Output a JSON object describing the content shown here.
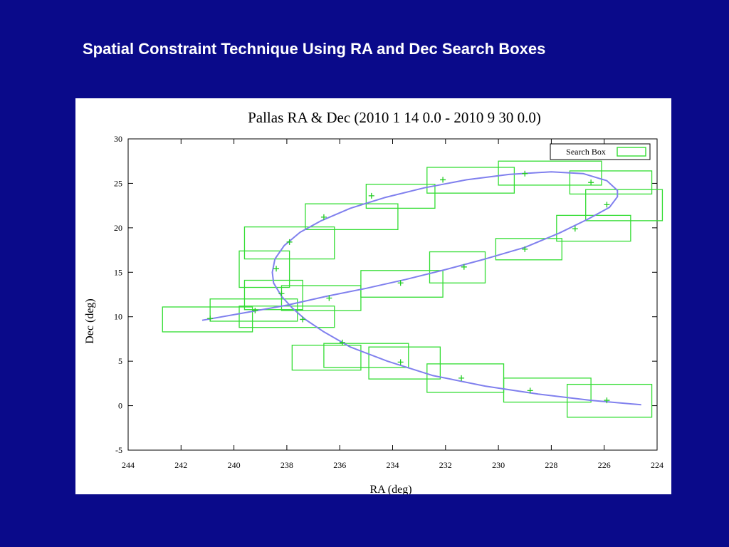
{
  "slide": {
    "title": "Spatial Constraint Technique Using RA and Dec Search Boxes"
  },
  "colors": {
    "background": "#0a0a8a",
    "curve": "#8080ee",
    "box": "#33dd33",
    "marker": "#22cc22",
    "frame": "#000000"
  },
  "chart_data": {
    "type": "line",
    "title": "Pallas  RA & Dec (2010 1 14 0.0 - 2010 9 30 0.0)",
    "xlabel": "RA (deg)",
    "ylabel": "Dec (deg)",
    "xlim": [
      244,
      224
    ],
    "x_reversed": true,
    "ylim": [
      -5,
      30
    ],
    "x_ticks": [
      244,
      242,
      240,
      238,
      236,
      234,
      232,
      230,
      228,
      226,
      224
    ],
    "y_ticks": [
      -5,
      0,
      5,
      10,
      15,
      20,
      25,
      30
    ],
    "grid": false,
    "legend": {
      "position": "top-right",
      "entries": [
        "Search Box"
      ]
    },
    "series": [
      {
        "type": "line",
        "points": [
          [
            224.6,
            0.1
          ],
          [
            226.5,
            0.6
          ],
          [
            228.5,
            1.3
          ],
          [
            230.5,
            2.2
          ],
          [
            232.5,
            3.4
          ],
          [
            234.2,
            5.0
          ],
          [
            235.6,
            6.6
          ],
          [
            236.6,
            8.3
          ],
          [
            237.3,
            9.7
          ],
          [
            237.8,
            11.0
          ],
          [
            238.2,
            12.3
          ],
          [
            238.5,
            13.8
          ],
          [
            238.55,
            15.0
          ],
          [
            238.45,
            16.5
          ],
          [
            238.1,
            18.0
          ],
          [
            237.5,
            19.5
          ],
          [
            236.7,
            20.8
          ],
          [
            235.6,
            22.2
          ],
          [
            234.3,
            23.4
          ],
          [
            232.8,
            24.5
          ],
          [
            231.2,
            25.4
          ],
          [
            229.6,
            26.0
          ],
          [
            228.0,
            26.3
          ],
          [
            226.8,
            26.1
          ],
          [
            225.9,
            25.3
          ],
          [
            225.5,
            24.2
          ],
          [
            225.5,
            23.5
          ],
          [
            225.8,
            22.3
          ],
          [
            226.6,
            21.0
          ],
          [
            227.7,
            19.4
          ],
          [
            229.0,
            17.8
          ],
          [
            230.5,
            16.5
          ],
          [
            232.0,
            15.3
          ],
          [
            233.5,
            14.2
          ],
          [
            235.0,
            13.2
          ],
          [
            236.5,
            12.3
          ],
          [
            238.0,
            11.3
          ],
          [
            239.5,
            10.5
          ],
          [
            241.2,
            9.6
          ]
        ]
      },
      {
        "type": "scatter",
        "points": [
          [
            240.9,
            9.8
          ],
          [
            239.2,
            10.7
          ],
          [
            238.2,
            12.6
          ],
          [
            236.4,
            12.1
          ],
          [
            233.7,
            13.8
          ],
          [
            231.3,
            15.6
          ],
          [
            229.0,
            17.6
          ],
          [
            227.1,
            19.9
          ],
          [
            225.9,
            22.6
          ],
          [
            226.5,
            25.1
          ],
          [
            229.0,
            26.1
          ],
          [
            232.1,
            25.4
          ],
          [
            234.8,
            23.6
          ],
          [
            236.6,
            21.2
          ],
          [
            237.9,
            18.4
          ],
          [
            238.4,
            15.4
          ],
          [
            237.4,
            9.7
          ],
          [
            235.9,
            7.1
          ],
          [
            233.7,
            4.9
          ],
          [
            231.4,
            3.1
          ],
          [
            228.8,
            1.7
          ],
          [
            225.9,
            0.6
          ]
        ]
      },
      {
        "type": "boxes",
        "name": "Search Box",
        "boxes": [
          [
            242.7,
            239.3,
            8.3,
            11.1
          ],
          [
            240.9,
            237.6,
            9.5,
            12.0
          ],
          [
            239.8,
            236.2,
            8.8,
            11.2
          ],
          [
            238.2,
            235.2,
            10.7,
            13.5
          ],
          [
            237.8,
            235.2,
            4.0,
            6.8
          ],
          [
            236.6,
            233.4,
            4.3,
            7.0
          ],
          [
            234.9,
            232.2,
            3.0,
            6.6
          ],
          [
            232.7,
            229.8,
            1.5,
            4.7
          ],
          [
            235.2,
            232.1,
            12.2,
            15.2
          ],
          [
            232.6,
            230.5,
            13.8,
            17.3
          ],
          [
            230.1,
            227.6,
            16.4,
            18.8
          ],
          [
            227.8,
            225.0,
            18.5,
            21.4
          ],
          [
            226.7,
            223.8,
            20.8,
            24.3
          ],
          [
            227.3,
            224.2,
            23.8,
            26.4
          ],
          [
            230.0,
            226.1,
            24.8,
            27.5
          ],
          [
            232.7,
            229.4,
            23.9,
            26.8
          ],
          [
            235.0,
            232.4,
            22.2,
            24.9
          ],
          [
            237.3,
            233.8,
            19.8,
            22.7
          ],
          [
            239.6,
            236.2,
            16.5,
            20.1
          ],
          [
            239.8,
            237.9,
            13.3,
            17.4
          ],
          [
            239.6,
            237.4,
            10.8,
            14.1
          ],
          [
            229.8,
            226.5,
            0.4,
            3.1
          ],
          [
            227.4,
            224.2,
            -1.3,
            2.4
          ]
        ]
      }
    ]
  }
}
